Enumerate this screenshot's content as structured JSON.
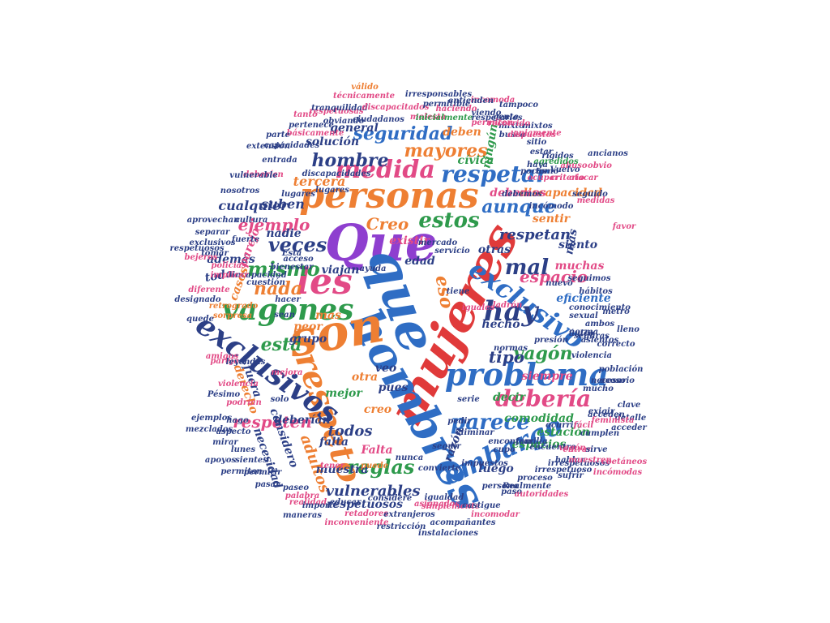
{
  "colors": {
    "background": "#ffffff",
    "blue": "#2f6dc4",
    "pink": "#e24a86",
    "red": "#e03a3a",
    "orange": "#ee7f33",
    "green": "#2e9a4c",
    "purple": "#8e3fcf",
    "navy": "#2c3f86",
    "teal": "#2a9ea0"
  },
  "words": [
    "mujeres",
    "Que",
    "que",
    "hombres",
    "son",
    "respeto",
    "personas",
    "les",
    "vagones",
    "problema",
    "exclusivos",
    "exclusivo",
    "debería",
    "embargo",
    "parece",
    "hay",
    "medida",
    "respetar",
    "seguridad",
    "mayores",
    "estos",
    "aunque",
    "mal",
    "veces",
    "mismo",
    "nada",
    "está",
    "reglas",
    "vagón",
    "hombre",
    "ejemplo",
    "eso",
    "espacio",
    "tipo",
    "respeten",
    "adultos",
    "respetan",
    "vulnerables",
    "todos",
    "cualquier",
    "tercera",
    "suben",
    "hecho",
    "comodidad",
    "estación",
    "espacios",
    "decir",
    "siempre",
    "razón",
    "luego",
    "creo",
    "Creo",
    "edad",
    "muestra",
    "discapacidad",
    "debemos",
    "deberían",
    "ningún",
    "cívica",
    "solución",
    "general",
    "deben",
    "muchas",
    "siento",
    "otras",
    "más",
    "sentir",
    "existir",
    "eficiente",
    "mejor",
    "pues",
    "veo",
    "otra",
    "considero",
    "necesidad",
    "falta",
    "Falta",
    "grupo",
    "peor",
    "mas",
    "casos",
    "toda",
    "además",
    "nadie",
    "viajan",
    "parejo",
    "fuera",
    "derecho",
    "respetuosos",
    "respetuosas",
    "seguimos",
    "irrespetuosos",
    "tranquilidad",
    "discapacitados",
    "técnicamente",
    "irresponsables",
    "válido",
    "viendo",
    "incomoda",
    "molesta",
    "inicialmente",
    "permitible",
    "tampoco",
    "básicamente",
    "obviando",
    "pertenece",
    "ciudadanos",
    "tanto",
    "parte",
    "extensión",
    "deberían",
    "entrada",
    "rígidos",
    "abuso",
    "vulnerable",
    "discapacidades",
    "lugares",
    "ancianos",
    "seguido",
    "capacidades",
    "incapacidad",
    "debemos",
    "atacar",
    "agredidos",
    "criterio",
    "medidas",
    "tomar",
    "cultura",
    "policías",
    "implicar",
    "bejeros",
    "bienestar",
    "ayuda",
    "diferente",
    "hacer",
    "nosotros",
    "aprovechan",
    "lugares",
    "incómodo",
    "fuerte",
    "acceso",
    "conocimiento",
    "cuestión",
    "sexual",
    "norma",
    "seguras",
    "hábitos",
    "presión",
    "nuevo",
    "ambos",
    "designado",
    "retrogrado",
    "sean",
    "sorpresa",
    "quede",
    "ladrón",
    "puede",
    "mucho",
    "normas",
    "metro",
    "lleno",
    "único",
    "acceden",
    "favor",
    "servicio",
    "mercado",
    "tiene",
    "iguales",
    "serie",
    "pedir",
    "cumplen",
    "igualdad",
    "amigos",
    "violencia",
    "pareja",
    "leyendas",
    "persona",
    "nunca",
    "permitan",
    "pasar",
    "convierte",
    "realidad",
    "proceso",
    "encuentro",
    "entrar",
    "incómodas",
    "impuestos",
    "eliminar",
    "vagón",
    "hablar",
    "inconveniente",
    "restricción",
    "instalaciones",
    "acompañantes",
    "simplemente",
    "retadores",
    "extranjeros",
    "asignados",
    "castigue",
    "incomodar",
    "Realmente",
    "paso",
    "autoridades",
    "irrespetuoso",
    "muestren",
    "coetáneos",
    "encontrar",
    "ocurrir",
    "fácil",
    "sirve",
    "clave",
    "acceder",
    "exigir",
    "detalle",
    "feminista",
    "población",
    "sufrir",
    "importe",
    "palabra",
    "maneras",
    "permitir",
    "paseo",
    "educar",
    "tener",
    "considere",
    "Pésimo",
    "hago",
    "podrían",
    "ejemplos",
    "mezclados",
    "solo",
    "sientes",
    "lunes",
    "apoyos",
    "mirar",
    "aspecto",
    "mejora",
    "seguir",
    "cupo",
    "familia",
    "asientos",
    "violencia",
    "necesario",
    "acoso",
    "correcto",
    "respetuosos",
    "exclusivos",
    "separar",
    "pocas",
    "obvio",
    "tomo",
    "sitio",
    "mixto",
    "mixtos",
    "busca",
    "estar",
    "gente",
    "recorrido",
    "dispuestos",
    "aniamente",
    "haciendo",
    "entienden",
    "respetarlos",
    "Vuelvo",
    "Está",
    "haya",
    "ocupar",
    "permiten",
    "visto",
    "vivir"
  ]
}
